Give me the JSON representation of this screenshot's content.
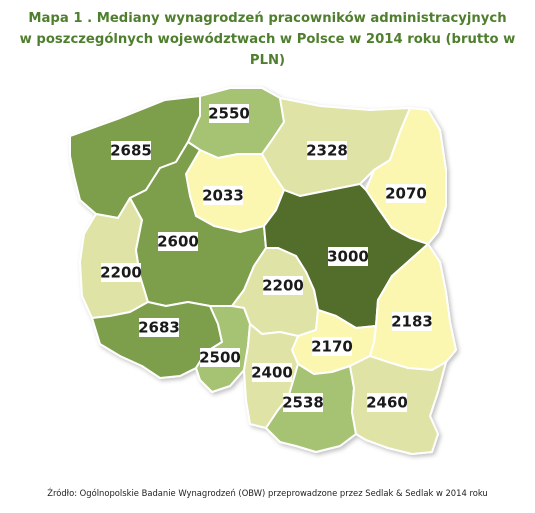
{
  "title": {
    "line1": "Mapa 1 . Mediany wynagrodzeń pracowników administracyjnych",
    "line2": "w poszczególnych województwach w Polsce w 2014 roku (brutto w PLN)"
  },
  "source": "Źródło: Ogólnopolskie Badanie Wynagrodzeń (OBW) przeprowadzone przez Sedlak & Sedlak w 2014 roku",
  "colors": {
    "title": "#4f7f2e",
    "lightest": "#fbf7b0",
    "light": "#dfe3a5",
    "medium_light": "#c8d690",
    "medium": "#a6c273",
    "dark": "#7d9e4c",
    "darkest": "#536d2c"
  },
  "regions": [
    {
      "id": "zachodniopomorskie",
      "value": "2685"
    },
    {
      "id": "pomorskie",
      "value": "2550"
    },
    {
      "id": "warminsko-mazurskie",
      "value": "2328"
    },
    {
      "id": "kujawsko-pomorskie",
      "value": "2033"
    },
    {
      "id": "podlaskie",
      "value": "2070"
    },
    {
      "id": "lubuskie",
      "value": "2200"
    },
    {
      "id": "wielkopolskie",
      "value": "2600"
    },
    {
      "id": "mazowieckie",
      "value": "3000"
    },
    {
      "id": "lodzkie",
      "value": "2200"
    },
    {
      "id": "dolnoslaskie",
      "value": "2683"
    },
    {
      "id": "lubelskie",
      "value": "2183"
    },
    {
      "id": "opolskie",
      "value": "2500"
    },
    {
      "id": "swietokrzyskie",
      "value": "2170"
    },
    {
      "id": "slaskie",
      "value": "2400"
    },
    {
      "id": "malopolskie",
      "value": "2538"
    },
    {
      "id": "podkarpackie",
      "value": "2460"
    }
  ]
}
